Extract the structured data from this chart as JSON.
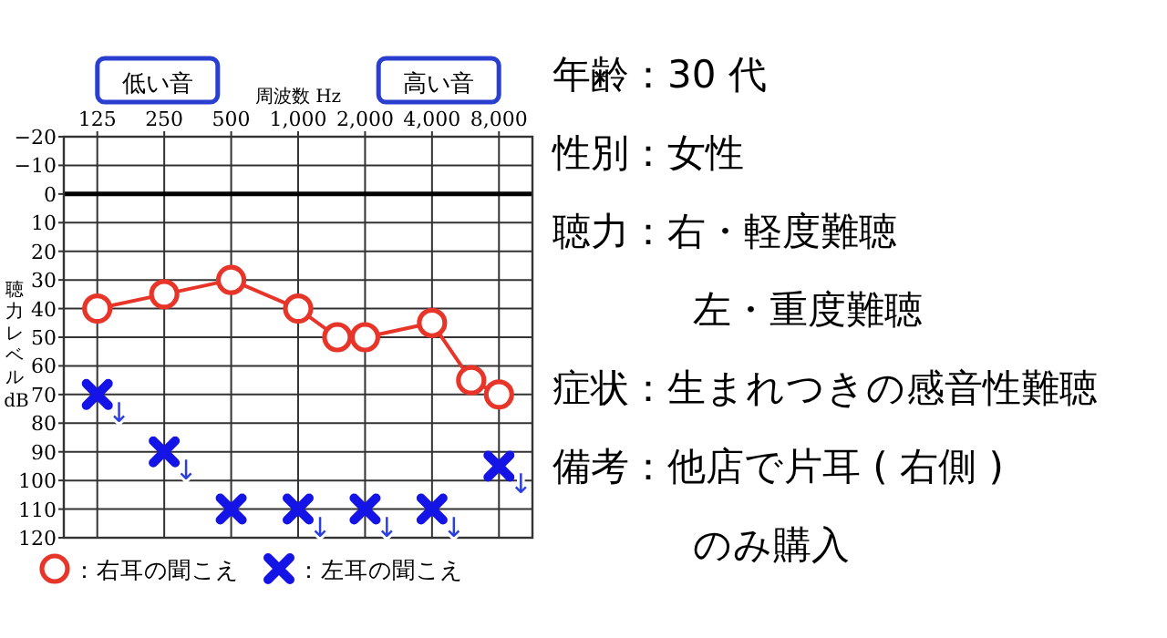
{
  "chart_data": [
    {
      "type": "line",
      "xlabel": "周波数 Hz",
      "ylabel": "聴力レベル dB",
      "log": "x",
      "xlim": [
        88.4,
        11314
      ],
      "xticks": [
        125,
        250,
        500,
        {
          "value": 1000,
          "label": "1,000"
        },
        {
          "value": 2000,
          "label": "2,000"
        },
        {
          "value": 4000,
          "label": "4,000"
        },
        {
          "value": 8000,
          "label": "8,000"
        }
      ],
      "ylim": [
        120,
        -20
      ],
      "yticks": [
        {
          "value": -20,
          "label": "−20"
        },
        {
          "value": -10,
          "label": "−10"
        },
        0,
        10,
        20,
        30,
        40,
        50,
        60,
        70,
        80,
        90,
        100,
        110,
        120
      ],
      "grid": true,
      "legend": "bottom",
      "ref_lines": [
        {
          "axis": "y",
          "value": 0,
          "color": "#000000"
        }
      ],
      "series": [
        {
          "name": "：右耳の聞こえ",
          "type": "line",
          "color": "#e8352a",
          "marker": "circle",
          "line_style": "solid",
          "x": [
            125,
            250,
            500,
            1000,
            1500,
            2000,
            4000,
            6000,
            8000
          ],
          "values": [
            40,
            35,
            30,
            40,
            50,
            50,
            45,
            65,
            70
          ]
        },
        {
          "name": "：左耳の聞こえ",
          "type": "scatter",
          "color": "#1414e6",
          "marker": "cross",
          "x": [
            125,
            250,
            500,
            1000,
            2000,
            4000,
            8000
          ],
          "values": [
            70,
            90,
            110,
            110,
            110,
            110,
            95
          ]
        }
      ],
      "annotations": [
        "低い音",
        "高い音",
        {
          "text": "↓",
          "x": 125,
          "y": 70
        },
        {
          "text": "↓",
          "x": 250,
          "y": 90
        },
        {
          "text": "↓",
          "x": 1000,
          "y": 110
        },
        {
          "text": "↓",
          "x": 2000,
          "y": 110
        },
        {
          "text": "↓",
          "x": 4000,
          "y": 110
        },
        {
          "text": "↓",
          "x": 8000,
          "y": 95
        }
      ]
    },
    {
      "type": "other",
      "annotations": [
        "年齢：30 代",
        "性別：女性",
        "聴力：右・軽度難聴",
        "左・重度難聴",
        "症状：生まれつきの感音性難聴",
        "備考：他店で片耳 ( 右側 )",
        "のみ購入"
      ]
    }
  ]
}
